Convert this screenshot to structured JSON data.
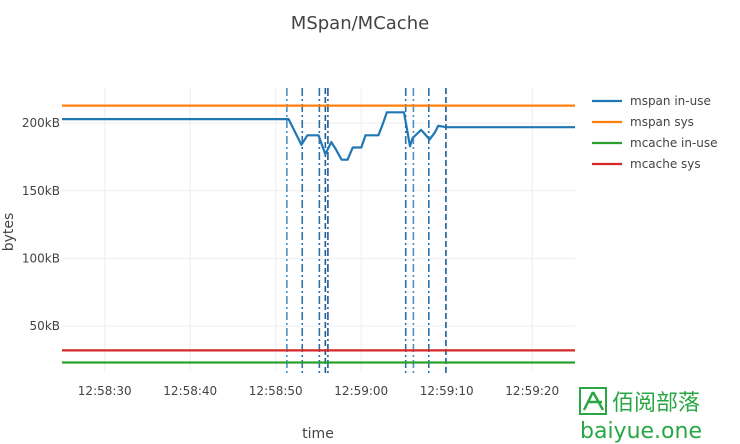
{
  "chart_data": {
    "type": "line",
    "title": "MSpan/MCache",
    "xlabel": "time",
    "ylabel": "bytes",
    "ylim": [
      16000,
      226000
    ],
    "xlim": [
      0,
      60
    ],
    "x_ticks": [
      {
        "t": 5,
        "label": "12:58:30"
      },
      {
        "t": 15,
        "label": "12:58:40"
      },
      {
        "t": 25,
        "label": "12:58:50"
      },
      {
        "t": 35,
        "label": "12:59:00"
      },
      {
        "t": 45,
        "label": "12:59:10"
      },
      {
        "t": 55,
        "label": "12:59:20"
      }
    ],
    "y_ticks": [
      {
        "v": 50000,
        "label": "50kB"
      },
      {
        "v": 100000,
        "label": "100kB"
      },
      {
        "v": 150000,
        "label": "150kB"
      },
      {
        "v": 200000,
        "label": "200kB"
      }
    ],
    "grid": true,
    "legend_position": "right",
    "series": [
      {
        "name": "mspan in-use",
        "color": "#1f77b4",
        "x": [
          0,
          26.5,
          28,
          28.7,
          30,
          30.8,
          31.5,
          32,
          32.7,
          33.4,
          34,
          35,
          35.5,
          36,
          37,
          37.5,
          38,
          38.8,
          39,
          40,
          40.7,
          41,
          42,
          43,
          43.6,
          44,
          45,
          60
        ],
        "values": [
          203000,
          203000,
          184000,
          191000,
          191000,
          177000,
          186000,
          181000,
          173000,
          173000,
          182000,
          182000,
          191000,
          191000,
          191000,
          199000,
          208000,
          208000,
          208000,
          208000,
          183000,
          189000,
          195000,
          188000,
          193000,
          198000,
          197000,
          197000
        ]
      },
      {
        "name": "mspan sys",
        "color": "#ff7f0e",
        "x": [
          0,
          60
        ],
        "values": [
          213000,
          213000
        ]
      },
      {
        "name": "mcache in-use",
        "color": "#2ca02c",
        "x": [
          0,
          60
        ],
        "values": [
          23000,
          23000
        ]
      },
      {
        "name": "mcache sys",
        "color": "#d62728",
        "x": [
          0,
          60
        ],
        "values": [
          32000,
          32000
        ]
      }
    ],
    "event_lines": [
      {
        "t": 26.3,
        "style": "dashdot",
        "color": "#4a90c4"
      },
      {
        "t": 28.1,
        "style": "dashdot",
        "color": "#2f6fa8"
      },
      {
        "t": 30.1,
        "style": "dashdot",
        "color": "#2f6fa8"
      },
      {
        "t": 30.8,
        "style": "dashed",
        "color": "#1f5d99"
      },
      {
        "t": 31.1,
        "style": "dashdot",
        "color": "#1f5d99"
      },
      {
        "t": 40.2,
        "style": "dashdot",
        "color": "#2f6fa8"
      },
      {
        "t": 41.1,
        "style": "dashdot",
        "color": "#4a90c4"
      },
      {
        "t": 42.9,
        "style": "dashdot",
        "color": "#2f6fa8"
      },
      {
        "t": 44.9,
        "style": "dashed",
        "color": "#1f5d99"
      }
    ]
  },
  "watermark": {
    "chinese": "佰阅部落",
    "latin": "baiyue.one",
    "color": "#29a744"
  }
}
